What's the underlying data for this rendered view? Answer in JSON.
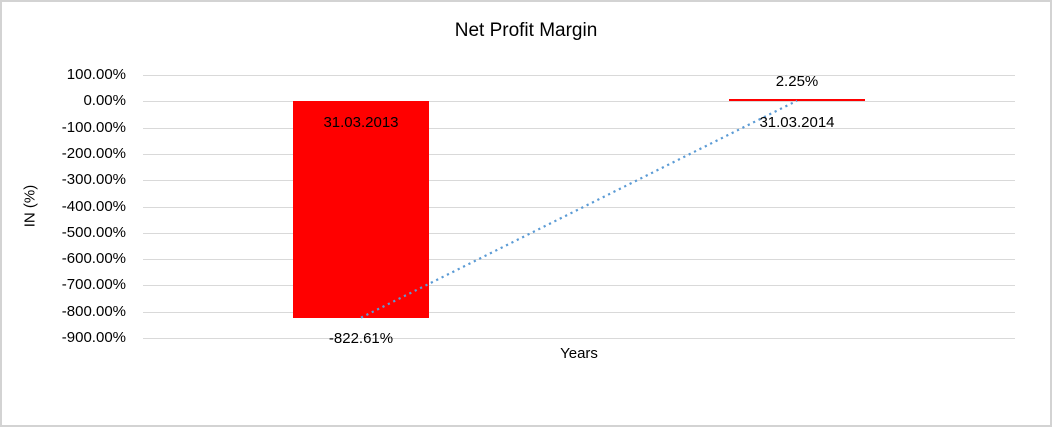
{
  "chart_data": {
    "type": "bar",
    "title": "Net Profit Margin",
    "xlabel": "Years",
    "ylabel": "IN (%)",
    "categories": [
      "31.03.2013",
      "31.03.2014"
    ],
    "series": [
      {
        "name": "Net Profit Margin",
        "values": [
          -822.61,
          2.25
        ],
        "data_labels": [
          "-822.61%",
          "2.25%"
        ]
      }
    ],
    "trendline": {
      "style": "dotted",
      "connects_points": [
        [
          0,
          -822.61
        ],
        [
          1,
          2.25
        ]
      ]
    },
    "y_axis": {
      "min": -900,
      "max": 100,
      "step": 100,
      "tick_labels": [
        "100.00%",
        "0.00%",
        "-100.00%",
        "-200.00%",
        "-300.00%",
        "-400.00%",
        "-500.00%",
        "-600.00%",
        "-700.00%",
        "-800.00%",
        "-900.00%"
      ]
    },
    "grid": true,
    "legend": false,
    "colors": {
      "bar": "#FF0000",
      "trendline": "#5B9BD5",
      "gridline": "#D9D9D9",
      "text": "#000000",
      "border": "#D3D3D3"
    }
  }
}
